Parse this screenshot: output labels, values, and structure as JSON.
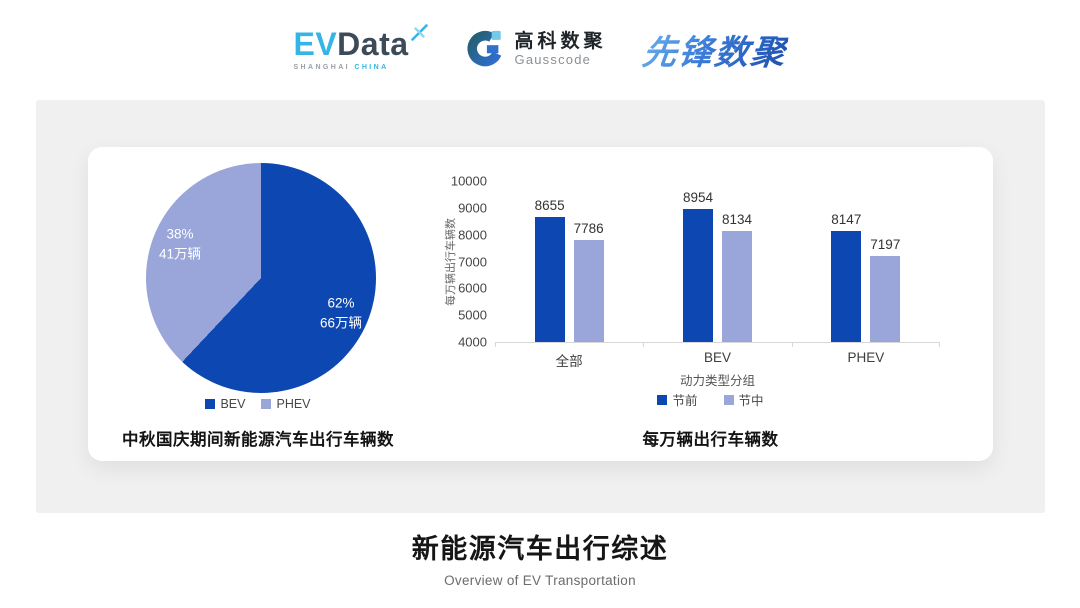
{
  "header": {
    "evdata": {
      "ev": "EV",
      "data_word": "Data",
      "sub_left": "SHANGHAI",
      "sub_right": "CHINA"
    },
    "gausscode": {
      "cn": "高科数聚",
      "en": "Gausscode"
    },
    "pioneer": "先锋数聚"
  },
  "colors": {
    "primary_blue": "#0D47B1",
    "light_periwinkle": "#9AA6D9",
    "panel_bg": "#F0F0F0",
    "evdata_cyan": "#35B5E5",
    "evdata_navy": "#3D4A57"
  },
  "chart_data": [
    {
      "type": "pie",
      "title": "中秋国庆期间新能源汽车出行车辆数",
      "start": "top, clockwise",
      "legend_position": "bottom",
      "slices": [
        {
          "label": "BEV",
          "percent": 62,
          "pct_label": "62%",
          "value_label": "66万辆",
          "color": "#0D47B1"
        },
        {
          "label": "PHEV",
          "percent": 38,
          "pct_label": "38%",
          "value_label": "41万辆",
          "color": "#9AA6D9"
        }
      ]
    },
    {
      "type": "bar",
      "title": "每万辆出行车辆数",
      "xlabel": "动力类型分组",
      "ylabel": "每万辆出行车辆数",
      "categories": [
        "全部",
        "BEV",
        "PHEV"
      ],
      "series": [
        {
          "name": "节前",
          "color": "#0D47B1",
          "values": [
            8655,
            8954,
            8147
          ]
        },
        {
          "name": "节中",
          "color": "#9AA6D9",
          "values": [
            7786,
            8134,
            7197
          ]
        }
      ],
      "ylim": [
        4000,
        10000
      ],
      "ytick_step": 1000,
      "grid": false,
      "legend_position": "bottom"
    }
  ],
  "footer": {
    "title": "新能源汽车出行综述",
    "subtitle": "Overview of EV Transportation"
  }
}
